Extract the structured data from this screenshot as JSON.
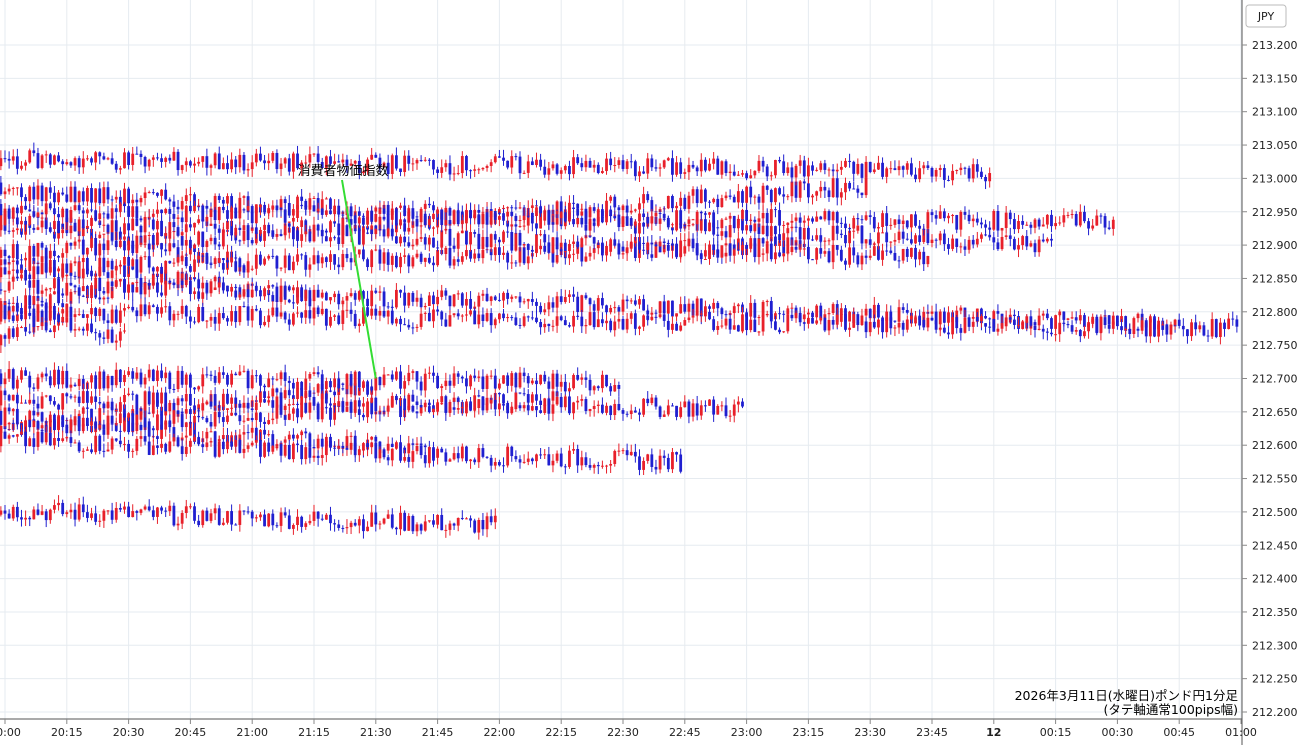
{
  "chart_data": {
    "type": "candlestick",
    "currency": "JPY",
    "caption_line1": "2026年3月11日(水曜日)ポンド円1分足",
    "caption_line2": "(タテ軸通常100pips幅)",
    "annotation": {
      "text": "消費者物価指数",
      "x": "21:30",
      "y": 212.7
    },
    "ylim": [
      212.2,
      213.2
    ],
    "y_ticks": [
      "212.200",
      "212.250",
      "212.300",
      "212.350",
      "212.400",
      "212.450",
      "212.500",
      "212.550",
      "212.600",
      "212.650",
      "212.700",
      "212.750",
      "212.800",
      "212.850",
      "212.900",
      "212.950",
      "213.000",
      "213.050",
      "213.100",
      "213.150",
      "213.200"
    ],
    "x_ticks": [
      "20:00",
      "20:15",
      "20:30",
      "20:45",
      "21:00",
      "21:15",
      "21:30",
      "21:45",
      "22:00",
      "22:15",
      "22:30",
      "22:45",
      "23:00",
      "23:15",
      "23:30",
      "23:45",
      "12",
      "00:15",
      "00:30",
      "00:45",
      "01:00"
    ],
    "grid": true,
    "colors": {
      "up": "#e8202a",
      "down": "#1f1fd0",
      "grid": "#e6ebf0",
      "annotation_line": "#33dd33"
    },
    "series": [
      {
        "t": "20:00",
        "close": 212.835
      },
      {
        "t": "20:05",
        "close": 212.83
      },
      {
        "t": "20:10",
        "close": 212.73
      },
      {
        "t": "20:15",
        "close": 212.805
      },
      {
        "t": "20:20",
        "close": 212.75
      },
      {
        "t": "20:25",
        "close": 212.815
      },
      {
        "t": "20:30",
        "close": 212.76
      },
      {
        "t": "20:35",
        "close": 212.745
      },
      {
        "t": "20:40",
        "close": 212.785
      },
      {
        "t": "20:45",
        "close": 212.86
      },
      {
        "t": "20:50",
        "close": 212.78
      },
      {
        "t": "20:55",
        "close": 212.95
      },
      {
        "t": "21:00",
        "close": 212.87
      },
      {
        "t": "21:05",
        "close": 212.83
      },
      {
        "t": "21:10",
        "close": 212.89
      },
      {
        "t": "21:15",
        "close": 212.82
      },
      {
        "t": "21:20",
        "close": 212.66
      },
      {
        "t": "21:25",
        "close": 212.62
      },
      {
        "t": "21:30",
        "close": 212.69
      },
      {
        "t": "21:35",
        "close": 212.64
      },
      {
        "t": "21:40",
        "close": 212.65
      },
      {
        "t": "21:45",
        "close": 212.59
      },
      {
        "t": "21:50",
        "close": 212.48
      },
      {
        "t": "21:55",
        "close": 212.505
      },
      {
        "t": "22:00",
        "close": 212.48
      },
      {
        "t": "22:05",
        "close": 212.51
      },
      {
        "t": "22:10",
        "close": 212.62
      },
      {
        "t": "22:15",
        "close": 212.67
      },
      {
        "t": "22:20",
        "close": 212.745
      },
      {
        "t": "22:25",
        "close": 212.7
      },
      {
        "t": "22:30",
        "close": 212.695
      },
      {
        "t": "22:35",
        "close": 212.65
      },
      {
        "t": "22:40",
        "close": 212.61
      },
      {
        "t": "22:45",
        "close": 212.575
      },
      {
        "t": "22:50",
        "close": 212.63
      },
      {
        "t": "22:55",
        "close": 212.67
      },
      {
        "t": "23:00",
        "close": 212.655
      },
      {
        "t": "23:05",
        "close": 212.79
      },
      {
        "t": "23:10",
        "close": 212.86
      },
      {
        "t": "23:15",
        "close": 212.9
      },
      {
        "t": "23:20",
        "close": 212.92
      },
      {
        "t": "23:25",
        "close": 212.88
      },
      {
        "t": "23:30",
        "close": 212.99
      },
      {
        "t": "23:35",
        "close": 212.925
      },
      {
        "t": "23:40",
        "close": 212.94
      },
      {
        "t": "23:45",
        "close": 212.88
      },
      {
        "t": "23:50",
        "close": 213.02
      },
      {
        "t": "23:55",
        "close": 213.03
      },
      {
        "t": "12",
        "close": 213.01
      },
      {
        "t": "00:05",
        "close": 212.95
      },
      {
        "t": "00:10",
        "close": 212.985
      },
      {
        "t": "00:15",
        "close": 212.9
      },
      {
        "t": "00:20",
        "close": 212.87
      },
      {
        "t": "00:25",
        "close": 212.95
      },
      {
        "t": "00:30",
        "close": 212.935
      },
      {
        "t": "00:35",
        "close": 212.88
      },
      {
        "t": "00:40",
        "close": 212.845
      },
      {
        "t": "00:45",
        "close": 212.78
      },
      {
        "t": "00:50",
        "close": 212.83
      },
      {
        "t": "00:55",
        "close": 212.8
      },
      {
        "t": "01:00",
        "close": 212.775
      }
    ]
  }
}
